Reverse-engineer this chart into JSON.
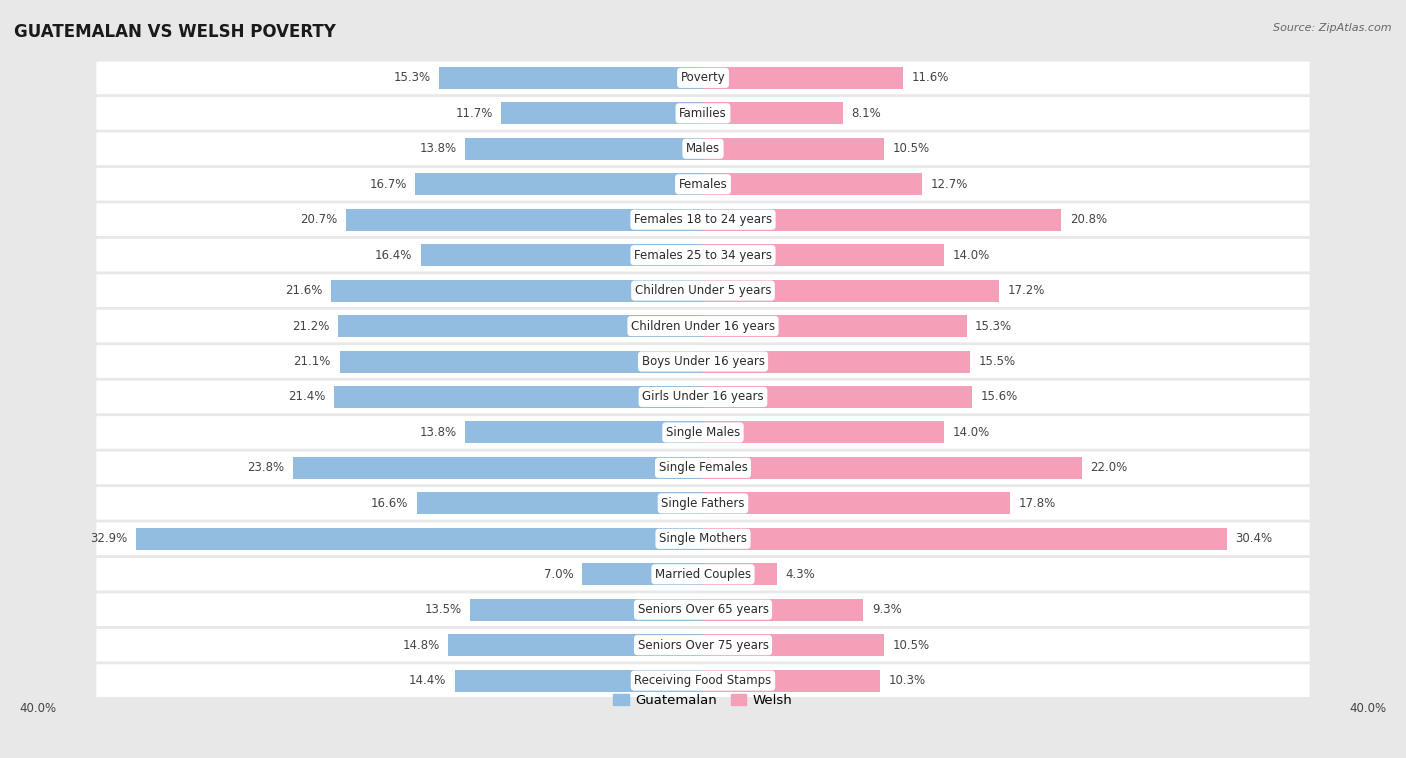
{
  "title": "GUATEMALAN VS WELSH POVERTY",
  "source": "Source: ZipAtlas.com",
  "categories": [
    "Poverty",
    "Families",
    "Males",
    "Females",
    "Females 18 to 24 years",
    "Females 25 to 34 years",
    "Children Under 5 years",
    "Children Under 16 years",
    "Boys Under 16 years",
    "Girls Under 16 years",
    "Single Males",
    "Single Females",
    "Single Fathers",
    "Single Mothers",
    "Married Couples",
    "Seniors Over 65 years",
    "Seniors Over 75 years",
    "Receiving Food Stamps"
  ],
  "guatemalan": [
    15.3,
    11.7,
    13.8,
    16.7,
    20.7,
    16.4,
    21.6,
    21.2,
    21.1,
    21.4,
    13.8,
    23.8,
    16.6,
    32.9,
    7.0,
    13.5,
    14.8,
    14.4
  ],
  "welsh": [
    11.6,
    8.1,
    10.5,
    12.7,
    20.8,
    14.0,
    17.2,
    15.3,
    15.5,
    15.6,
    14.0,
    22.0,
    17.8,
    30.4,
    4.3,
    9.3,
    10.5,
    10.3
  ],
  "guatemalan_color": "#92bde0",
  "welsh_color": "#f4a0b8",
  "background_color": "#e8e8e8",
  "bar_row_color": "#ffffff",
  "axis_max": 40.0,
  "label_fontsize": 8.5,
  "title_fontsize": 12,
  "legend_fontsize": 9.5,
  "value_fontsize": 8.5
}
